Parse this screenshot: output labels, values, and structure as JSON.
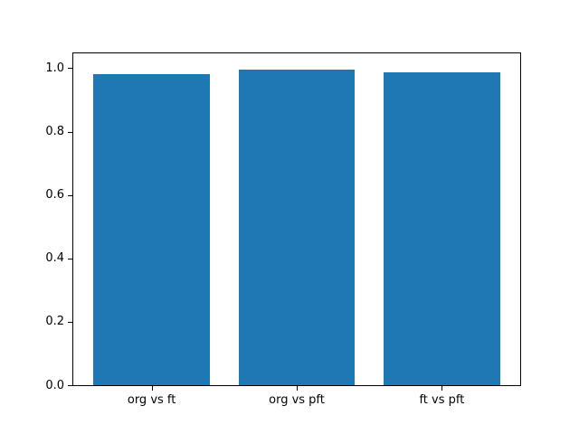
{
  "figure": {
    "background_color": "#ffffff",
    "axes_background_color": "#ffffff",
    "spine_color": "#000000",
    "tick_color": "#000000",
    "text_color": "#000000"
  },
  "chart_data": {
    "type": "bar",
    "title": "",
    "xlabel": "",
    "ylabel": "",
    "categories": [
      "org vs ft",
      "org vs pft",
      "ft vs pft"
    ],
    "values": [
      0.981,
      0.997,
      0.987
    ],
    "bar_color": "#1f77b4",
    "bar_width": 0.8,
    "xlim": [
      -0.54,
      2.54
    ],
    "ylim": [
      0,
      1.047
    ],
    "yticks": [
      {
        "value": 0.0,
        "label": "0.0"
      },
      {
        "value": 0.2,
        "label": "0.2"
      },
      {
        "value": 0.4,
        "label": "0.4"
      },
      {
        "value": 0.6,
        "label": "0.6"
      },
      {
        "value": 0.8,
        "label": "0.8"
      },
      {
        "value": 1.0,
        "label": "1.0"
      }
    ],
    "grid": false,
    "legend": null
  }
}
